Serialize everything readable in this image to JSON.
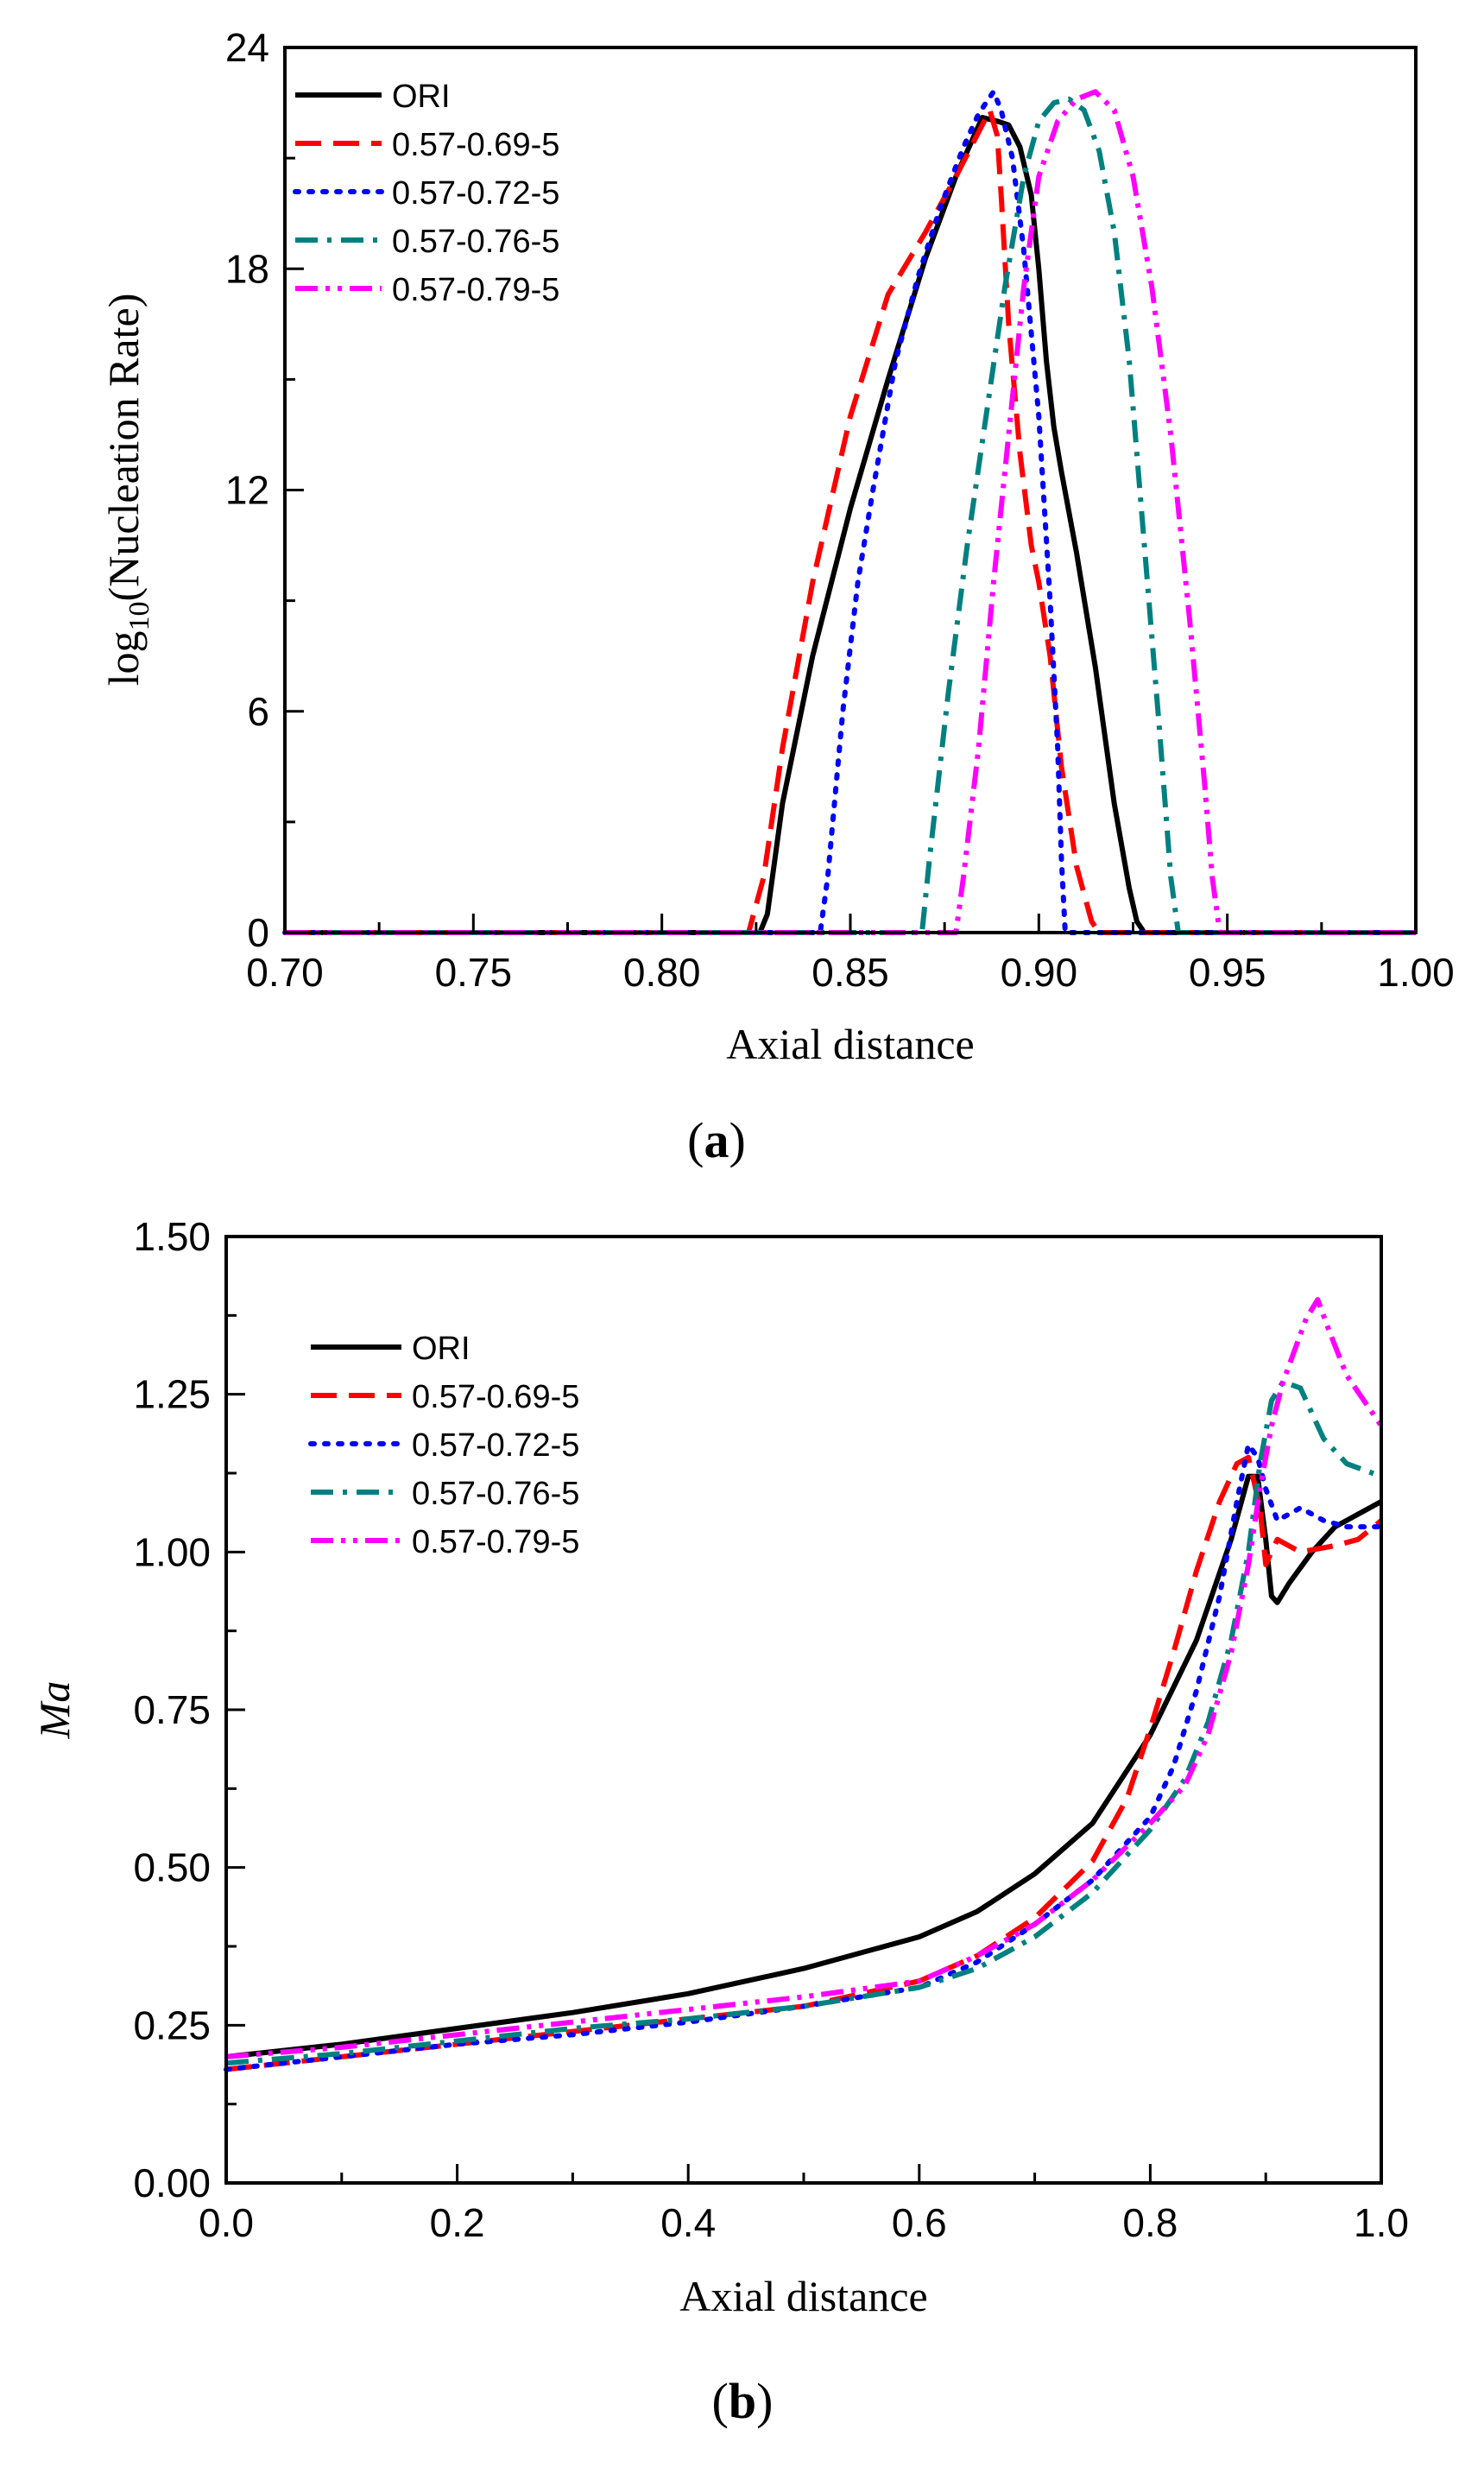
{
  "figure": {
    "panels": [
      {
        "id": "a",
        "caption_prefix": "(",
        "caption_letter": "a",
        "caption_suffix": ")"
      },
      {
        "id": "b",
        "caption_prefix": "(",
        "caption_letter": "b",
        "caption_suffix": ")"
      }
    ]
  },
  "chart_data": [
    {
      "type": "line",
      "panel": "a",
      "title": "",
      "xlabel": "Axial distance",
      "ylabel_main": "log",
      "ylabel_sub": "10",
      "ylabel_rest": "(Nucleation Rate)",
      "xlim": [
        0.7,
        1.0
      ],
      "ylim": [
        0,
        24
      ],
      "xticks": [
        0.7,
        0.75,
        0.8,
        0.85,
        0.9,
        0.95,
        1.0
      ],
      "xtick_labels": [
        "0.70",
        "0.75",
        "0.80",
        "0.85",
        "0.90",
        "0.95",
        "1.00"
      ],
      "yticks": [
        0,
        6,
        12,
        18,
        24
      ],
      "ytick_labels": [
        "0",
        "6",
        "12",
        "18",
        "24"
      ],
      "legend_position": "top-left",
      "series": [
        {
          "name": "ORI",
          "color": "#000000",
          "dash": "solid",
          "x": [
            0.7,
            0.826,
            0.828,
            0.832,
            0.84,
            0.85,
            0.86,
            0.87,
            0.878,
            0.885,
            0.889,
            0.892,
            0.895,
            0.898,
            0.9,
            0.902,
            0.904,
            0.906,
            0.91,
            0.915,
            0.92,
            0.924,
            0.926,
            0.928,
            1.0
          ],
          "y": [
            0,
            0,
            0.5,
            3.5,
            7.5,
            11.5,
            15.0,
            18.3,
            20.5,
            22.1,
            22.0,
            21.9,
            21.3,
            20.0,
            18.0,
            15.5,
            13.7,
            12.5,
            10.3,
            7.2,
            3.5,
            1.2,
            0.3,
            0,
            0
          ]
        },
        {
          "name": "0.57-0.69-5",
          "color": "#ff0000",
          "dash": "long",
          "x": [
            0.7,
            0.823,
            0.827,
            0.832,
            0.84,
            0.85,
            0.86,
            0.87,
            0.878,
            0.883,
            0.887,
            0.889,
            0.89,
            0.892,
            0.895,
            0.898,
            0.9,
            0.903,
            0.906,
            0.91,
            0.914,
            0.916,
            1.0
          ],
          "y": [
            0,
            0,
            1.5,
            5.0,
            9.5,
            14.0,
            17.3,
            19.0,
            20.5,
            21.5,
            22.3,
            21.6,
            20.0,
            16.5,
            13.0,
            10.5,
            9.5,
            7.5,
            4.5,
            1.8,
            0.3,
            0,
            0
          ]
        },
        {
          "name": "0.57-0.72-5",
          "color": "#0000ff",
          "dash": "dot",
          "x": [
            0.7,
            0.842,
            0.844,
            0.848,
            0.852,
            0.856,
            0.862,
            0.868,
            0.874,
            0.88,
            0.884,
            0.888,
            0.89,
            0.893,
            0.896,
            0.9,
            0.903,
            0.905,
            0.906,
            0.907,
            1.0
          ],
          "y": [
            0,
            0,
            1.5,
            6.0,
            9.5,
            12.0,
            15.5,
            17.8,
            19.7,
            21.3,
            22.2,
            22.8,
            22.3,
            21.0,
            18.5,
            14.0,
            9.0,
            5.0,
            2.0,
            0,
            0
          ]
        },
        {
          "name": "0.57-0.76-5",
          "color": "#008080",
          "dash": "dashdot",
          "x": [
            0.7,
            0.869,
            0.871,
            0.876,
            0.881,
            0.886,
            0.891,
            0.896,
            0.9,
            0.904,
            0.908,
            0.912,
            0.916,
            0.92,
            0.924,
            0.928,
            0.932,
            0.935,
            0.937,
            1.0
          ],
          "y": [
            0,
            0,
            2.0,
            6.5,
            10.5,
            14.0,
            17.5,
            20.5,
            22.0,
            22.5,
            22.6,
            22.3,
            21.2,
            19.0,
            15.5,
            10.5,
            5.5,
            1.5,
            0,
            0
          ]
        },
        {
          "name": "0.57-0.79-5",
          "color": "#ff00ff",
          "dash": "dashdotdot",
          "x": [
            0.7,
            0.878,
            0.88,
            0.884,
            0.888,
            0.892,
            0.896,
            0.9,
            0.905,
            0.91,
            0.915,
            0.92,
            0.925,
            0.93,
            0.935,
            0.94,
            0.944,
            0.946,
            0.948,
            1.0
          ],
          "y": [
            0,
            0,
            1.5,
            5.0,
            9.5,
            13.5,
            17.5,
            20.5,
            22.0,
            22.6,
            22.8,
            22.3,
            20.5,
            17.5,
            13.5,
            8.5,
            4.0,
            1.5,
            0,
            0
          ]
        }
      ]
    },
    {
      "type": "line",
      "panel": "b",
      "title": "",
      "xlabel": "Axial distance",
      "ylabel": "Ma",
      "xlim": [
        0.0,
        1.0
      ],
      "ylim": [
        0.0,
        1.5
      ],
      "xticks": [
        0.0,
        0.2,
        0.4,
        0.6,
        0.8,
        1.0
      ],
      "xtick_labels": [
        "0.0",
        "0.2",
        "0.4",
        "0.6",
        "0.8",
        "1.0"
      ],
      "yticks": [
        0.0,
        0.25,
        0.5,
        0.75,
        1.0,
        1.25,
        1.5
      ],
      "ytick_labels": [
        "0.00",
        "0.25",
        "0.50",
        "0.75",
        "1.00",
        "1.25",
        "1.50"
      ],
      "legend_position": "top-left",
      "series": [
        {
          "name": "ORI",
          "color": "#000000",
          "dash": "solid",
          "x": [
            0.0,
            0.1,
            0.2,
            0.3,
            0.4,
            0.5,
            0.6,
            0.65,
            0.7,
            0.75,
            0.8,
            0.84,
            0.87,
            0.885,
            0.893,
            0.9,
            0.905,
            0.91,
            0.92,
            0.94,
            0.96,
            0.98,
            1.0
          ],
          "y": [
            0.2,
            0.22,
            0.245,
            0.27,
            0.3,
            0.34,
            0.39,
            0.43,
            0.49,
            0.57,
            0.71,
            0.86,
            1.02,
            1.12,
            1.12,
            1.02,
            0.93,
            0.92,
            0.95,
            1.0,
            1.04,
            1.06,
            1.08
          ]
        },
        {
          "name": "0.57-0.69-5",
          "color": "#ff0000",
          "dash": "long",
          "x": [
            0.0,
            0.1,
            0.2,
            0.3,
            0.4,
            0.5,
            0.6,
            0.65,
            0.7,
            0.75,
            0.78,
            0.8,
            0.82,
            0.84,
            0.86,
            0.875,
            0.885,
            0.895,
            0.9,
            0.91,
            0.93,
            0.96,
            0.98,
            1.0
          ],
          "y": [
            0.18,
            0.2,
            0.22,
            0.24,
            0.26,
            0.28,
            0.32,
            0.36,
            0.42,
            0.51,
            0.61,
            0.72,
            0.84,
            0.97,
            1.08,
            1.14,
            1.15,
            1.07,
            0.98,
            1.02,
            1.0,
            1.01,
            1.02,
            1.05
          ]
        },
        {
          "name": "0.57-0.72-5",
          "color": "#0000ff",
          "dash": "dot",
          "x": [
            0.0,
            0.1,
            0.2,
            0.3,
            0.4,
            0.5,
            0.6,
            0.65,
            0.7,
            0.75,
            0.8,
            0.82,
            0.84,
            0.86,
            0.875,
            0.885,
            0.893,
            0.9,
            0.91,
            0.93,
            0.95,
            0.97,
            1.0
          ],
          "y": [
            0.18,
            0.2,
            0.22,
            0.235,
            0.255,
            0.28,
            0.31,
            0.35,
            0.41,
            0.48,
            0.58,
            0.66,
            0.78,
            0.93,
            1.08,
            1.17,
            1.15,
            1.1,
            1.05,
            1.07,
            1.05,
            1.04,
            1.04
          ]
        },
        {
          "name": "0.57-0.76-5",
          "color": "#008080",
          "dash": "dashdot",
          "x": [
            0.0,
            0.1,
            0.2,
            0.3,
            0.4,
            0.5,
            0.6,
            0.65,
            0.7,
            0.75,
            0.8,
            0.83,
            0.85,
            0.87,
            0.885,
            0.895,
            0.905,
            0.915,
            0.93,
            0.94,
            0.95,
            0.97,
            1.0
          ],
          "y": [
            0.19,
            0.205,
            0.225,
            0.245,
            0.26,
            0.28,
            0.31,
            0.34,
            0.39,
            0.46,
            0.56,
            0.64,
            0.73,
            0.86,
            1.0,
            1.14,
            1.24,
            1.27,
            1.26,
            1.22,
            1.18,
            1.14,
            1.12
          ]
        },
        {
          "name": "0.57-0.79-5",
          "color": "#ff00ff",
          "dash": "dashdotdot",
          "x": [
            0.0,
            0.1,
            0.2,
            0.3,
            0.4,
            0.5,
            0.6,
            0.65,
            0.7,
            0.75,
            0.8,
            0.83,
            0.85,
            0.87,
            0.885,
            0.895,
            0.905,
            0.915,
            0.925,
            0.935,
            0.945,
            0.955,
            0.97,
            1.0
          ],
          "y": [
            0.2,
            0.215,
            0.235,
            0.255,
            0.275,
            0.295,
            0.32,
            0.36,
            0.41,
            0.48,
            0.57,
            0.63,
            0.71,
            0.84,
            0.98,
            1.1,
            1.2,
            1.27,
            1.32,
            1.37,
            1.4,
            1.35,
            1.28,
            1.2
          ]
        }
      ]
    }
  ]
}
